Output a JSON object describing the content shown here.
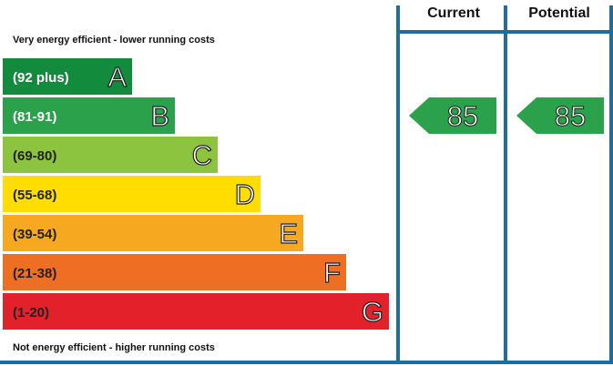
{
  "header": {
    "current_label": "Current",
    "potential_label": "Potential"
  },
  "captions": {
    "top": "Very energy efficient - lower running costs",
    "bottom": "Not energy efficient - higher running costs"
  },
  "chart_data": {
    "type": "bar",
    "bands": [
      {
        "range": "(92 plus)",
        "letter": "A",
        "color": "#138b3c",
        "text_color": "#ffffff"
      },
      {
        "range": "(81-91)",
        "letter": "B",
        "color": "#2aa14a",
        "text_color": "#ffffff"
      },
      {
        "range": "(69-80)",
        "letter": "C",
        "color": "#8cc43f",
        "text_color": "#222222"
      },
      {
        "range": "(55-68)",
        "letter": "D",
        "color": "#ffdd00",
        "text_color": "#222222"
      },
      {
        "range": "(39-54)",
        "letter": "E",
        "color": "#f6a821",
        "text_color": "#222222"
      },
      {
        "range": "(21-38)",
        "letter": "F",
        "color": "#ee6f23",
        "text_color": "#222222"
      },
      {
        "range": "(1-20)",
        "letter": "G",
        "color": "#e2212a",
        "text_color": "#222222"
      }
    ],
    "ratings": [
      {
        "column": "Current",
        "value": 85,
        "band": "B"
      },
      {
        "column": "Potential",
        "value": 85,
        "band": "B"
      }
    ],
    "frame_color": "#1f6c9e"
  }
}
